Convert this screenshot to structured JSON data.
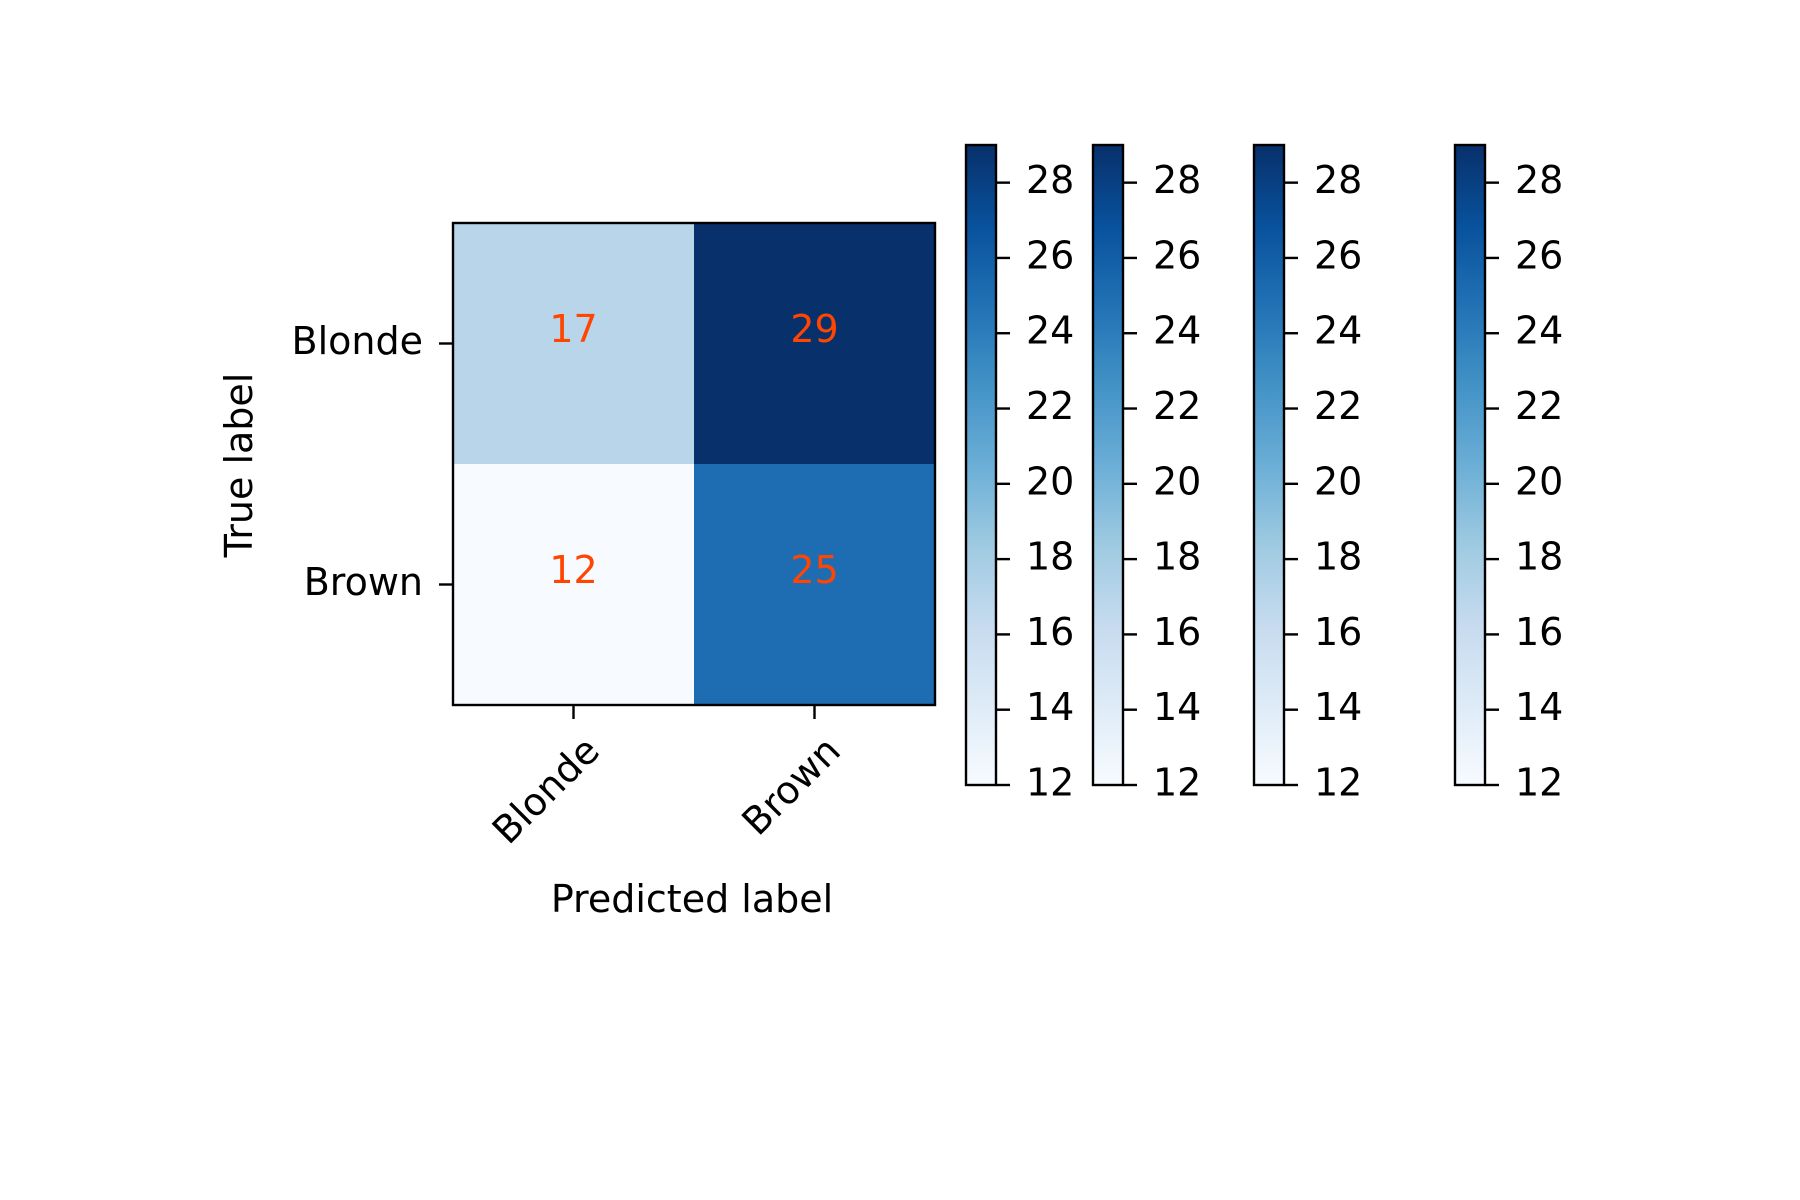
{
  "chart_data": {
    "type": "heatmap",
    "title": "",
    "xlabel": "Predicted label",
    "ylabel": "True label",
    "x_categories": [
      "Blonde",
      "Brown"
    ],
    "y_categories": [
      "Blonde",
      "Brown"
    ],
    "values": [
      [
        17,
        29
      ],
      [
        12,
        25
      ]
    ],
    "colormap": "Blues",
    "annotation_color": "#ff4500",
    "colorbar": {
      "count": 4,
      "range": [
        12,
        29
      ],
      "ticks": [
        12,
        14,
        16,
        18,
        20,
        22,
        24,
        26,
        28
      ],
      "tick_labels": [
        "12",
        "14",
        "16",
        "18",
        "20",
        "22",
        "24",
        "26",
        "28"
      ]
    }
  }
}
